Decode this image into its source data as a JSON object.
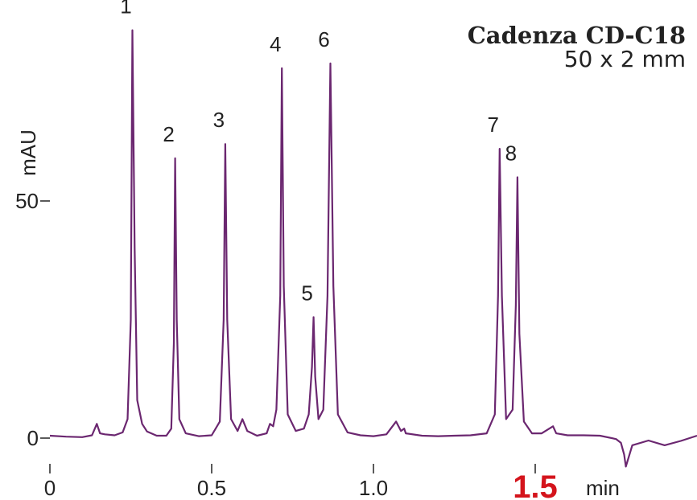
{
  "chart_data": {
    "type": "line",
    "title": "Cadenza CD-C18",
    "subtitle": "50 x 2 mm",
    "xlabel": "min",
    "ylabel": "mAU",
    "xlim": [
      0,
      2.0
    ],
    "ylim": [
      -6,
      95
    ],
    "grid": false,
    "legend": "none",
    "x_ticks": [
      {
        "value": 0,
        "label": "0"
      },
      {
        "value": 0.5,
        "label": "0.5"
      },
      {
        "value": 1.0,
        "label": "1.0"
      },
      {
        "value": 1.5,
        "label": "1.5",
        "highlight": true
      }
    ],
    "y_ticks": [
      {
        "value": 0,
        "label": "0"
      },
      {
        "value": 50,
        "label": "50"
      }
    ],
    "peaks": [
      {
        "label": "1",
        "time": 0.255,
        "height": 86
      },
      {
        "label": "2",
        "time": 0.387,
        "height": 59
      },
      {
        "label": "3",
        "time": 0.542,
        "height": 62
      },
      {
        "label": "4",
        "time": 0.717,
        "height": 78
      },
      {
        "label": "5",
        "time": 0.815,
        "height": 25.5
      },
      {
        "label": "6",
        "time": 0.867,
        "height": 79
      },
      {
        "label": "7",
        "time": 1.39,
        "height": 61
      },
      {
        "label": "8",
        "time": 1.445,
        "height": 55
      }
    ],
    "series": [
      {
        "color": "#6b2770",
        "x": [
          0.0,
          0.05,
          0.1,
          0.13,
          0.145,
          0.155,
          0.17,
          0.2,
          0.225,
          0.24,
          0.25,
          0.255,
          0.262,
          0.27,
          0.285,
          0.3,
          0.33,
          0.36,
          0.375,
          0.383,
          0.387,
          0.392,
          0.4,
          0.42,
          0.46,
          0.5,
          0.525,
          0.537,
          0.542,
          0.548,
          0.56,
          0.58,
          0.595,
          0.61,
          0.64,
          0.67,
          0.68,
          0.69,
          0.7,
          0.712,
          0.717,
          0.723,
          0.735,
          0.76,
          0.785,
          0.8,
          0.81,
          0.815,
          0.82,
          0.83,
          0.845,
          0.858,
          0.867,
          0.876,
          0.89,
          0.92,
          0.96,
          1.0,
          1.04,
          1.07,
          1.085,
          1.095,
          1.1,
          1.15,
          1.2,
          1.25,
          1.3,
          1.35,
          1.375,
          1.385,
          1.39,
          1.397,
          1.41,
          1.43,
          1.44,
          1.445,
          1.451,
          1.465,
          1.49,
          1.52,
          1.555,
          1.565,
          1.6,
          1.65,
          1.7,
          1.75,
          1.765,
          1.775,
          1.78,
          1.8,
          1.85,
          1.9,
          1.95,
          2.0
        ],
        "y": [
          0.5,
          0.3,
          0.2,
          0.6,
          3.0,
          1.0,
          0.8,
          0.6,
          1.2,
          4.0,
          25.0,
          86.0,
          40.0,
          8.0,
          3.0,
          1.4,
          0.5,
          0.5,
          2.0,
          20.0,
          59.0,
          25.0,
          4.0,
          1.0,
          0.4,
          0.6,
          3.5,
          25.0,
          62.0,
          25.0,
          4.0,
          1.5,
          4.0,
          1.5,
          0.5,
          1.0,
          3.0,
          2.5,
          6.0,
          30.0,
          78.0,
          32.0,
          5.0,
          1.5,
          2.0,
          5.0,
          15.0,
          25.5,
          13.0,
          4.0,
          6.0,
          30.0,
          79.0,
          32.0,
          5.0,
          1.2,
          0.6,
          0.4,
          0.8,
          3.5,
          1.5,
          2.0,
          1.0,
          0.5,
          0.4,
          0.5,
          0.6,
          1.0,
          5.0,
          30.0,
          61.0,
          30.0,
          4.0,
          6.0,
          28.0,
          55.0,
          22.0,
          3.5,
          1.0,
          1.0,
          2.5,
          1.0,
          0.6,
          0.6,
          0.5,
          -0.2,
          -1.0,
          -3.5,
          -6.0,
          -1.5,
          -0.5,
          -1.5,
          -0.6,
          0.5
        ]
      }
    ]
  }
}
